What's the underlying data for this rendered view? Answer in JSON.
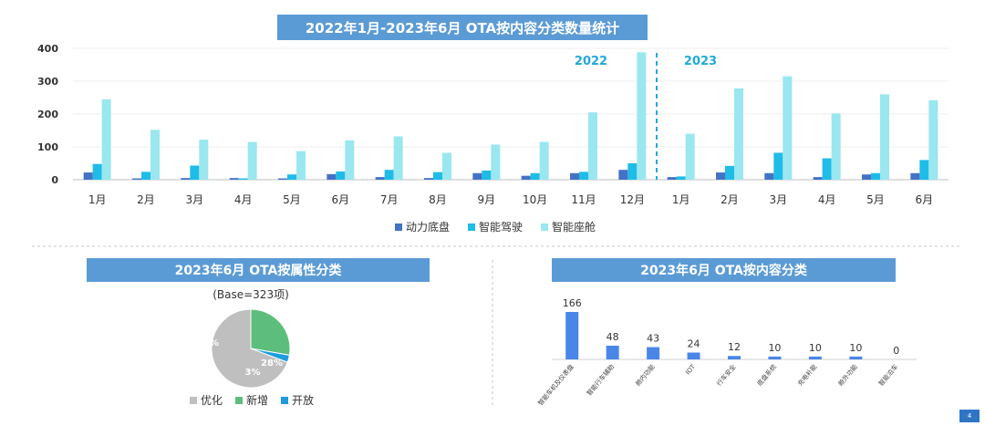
{
  "colors": {
    "banner": "#5b9bd5",
    "powertrain": "#4472c4",
    "adas": "#1fbce8",
    "cockpit": "#9ae7ef",
    "year_label": "#22a8d8",
    "optimize": "#bfbfbf",
    "new": "#5dbd7c",
    "open": "#1f9be0",
    "bar": "#4a86e8"
  },
  "titles": {
    "main": "2022年1月-2023年6月 OTA按内容分类数量统计",
    "attribute": "2023年6月 OTA按属性分类",
    "content": "2023年6月 OTA按内容分类"
  },
  "page_number": "4",
  "chart_data": [
    {
      "type": "bar",
      "title": "2022年1月-2023年6月 OTA按内容分类数量统计",
      "categories": [
        "1月",
        "2月",
        "3月",
        "4月",
        "5月",
        "6月",
        "7月",
        "8月",
        "9月",
        "10月",
        "11月",
        "12月",
        "1月",
        "2月",
        "3月",
        "4月",
        "5月",
        "6月"
      ],
      "ylim": [
        0,
        400
      ],
      "yticks": [
        0,
        100,
        200,
        300,
        400
      ],
      "year_labels": [
        "2022",
        "2023"
      ],
      "year_divider_after_index": 11,
      "legend_position": "bottom",
      "grid": true,
      "series": [
        {
          "name": "动力底盘",
          "values": [
            22,
            4,
            5,
            5,
            4,
            17,
            8,
            5,
            20,
            12,
            20,
            30,
            8,
            22,
            20,
            8,
            16,
            20
          ]
        },
        {
          "name": "智能驾驶",
          "values": [
            48,
            24,
            43,
            4,
            16,
            25,
            30,
            23,
            28,
            20,
            24,
            50,
            10,
            42,
            82,
            65,
            20,
            60
          ]
        },
        {
          "name": "智能座舱",
          "values": [
            245,
            152,
            122,
            115,
            87,
            120,
            132,
            82,
            107,
            115,
            205,
            388,
            140,
            278,
            315,
            202,
            260,
            242
          ]
        }
      ]
    },
    {
      "type": "pie",
      "title": "2023年6月 OTA按属性分类",
      "subtitle": "(Base=323项)",
      "slices": [
        {
          "name": "优化",
          "value": 70,
          "label": "70%"
        },
        {
          "name": "新增",
          "value": 28,
          "label": "28%"
        },
        {
          "name": "开放",
          "value": 3,
          "label": "3%"
        }
      ],
      "legend_position": "bottom"
    },
    {
      "type": "bar",
      "title": "2023年6月 OTA按内容分类",
      "categories": [
        "智能车机及仪表盘",
        "智能行车辅助",
        "舱内功能",
        "IOT",
        "行车安全",
        "底盘系统",
        "充电补能",
        "舱外功能",
        "智能泊车"
      ],
      "values": [
        166,
        48,
        43,
        24,
        12,
        10,
        10,
        10,
        0
      ]
    }
  ]
}
